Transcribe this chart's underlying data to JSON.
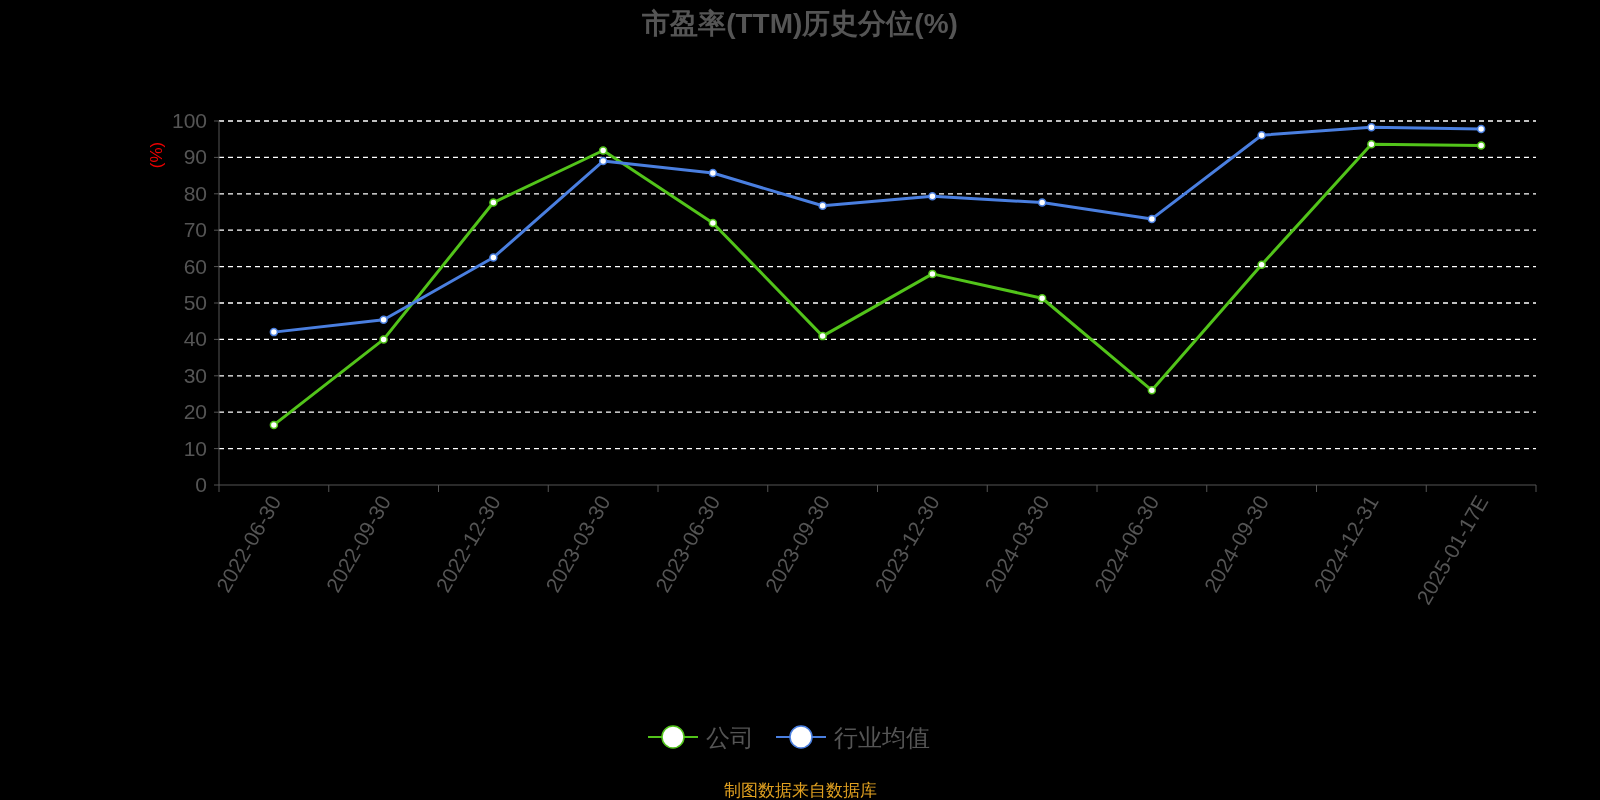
{
  "chart_data": {
    "type": "line",
    "title": "市盈率(TTM)历史分位(%)",
    "ylabel": "(%)",
    "categories": [
      "2022-06-30",
      "2022-09-30",
      "2022-12-30",
      "2023-03-30",
      "2023-06-30",
      "2023-09-30",
      "2023-12-30",
      "2024-03-30",
      "2024-06-30",
      "2024-09-30",
      "2024-12-31",
      "2025-01-17E"
    ],
    "series": [
      {
        "name": "公司",
        "color": "#52c41a",
        "values": [
          16.5,
          40,
          77.6,
          91.9,
          72,
          40.9,
          58,
          51.3,
          26,
          60.5,
          93.6,
          93.3
        ]
      },
      {
        "name": "行业均值",
        "color": "#4a7fe0",
        "values": [
          42,
          45.4,
          62.5,
          89,
          85.7,
          76.7,
          79.3,
          77.6,
          73.1,
          96.1,
          98.3,
          97.8
        ]
      }
    ],
    "ylim": [
      0,
      100
    ],
    "yticks": [
      0,
      10,
      20,
      30,
      40,
      50,
      60,
      70,
      80,
      90,
      100
    ],
    "grid": "y",
    "legend": "bottom",
    "marker": "circle",
    "annotations": [
      "制图数据来自数据库"
    ]
  }
}
